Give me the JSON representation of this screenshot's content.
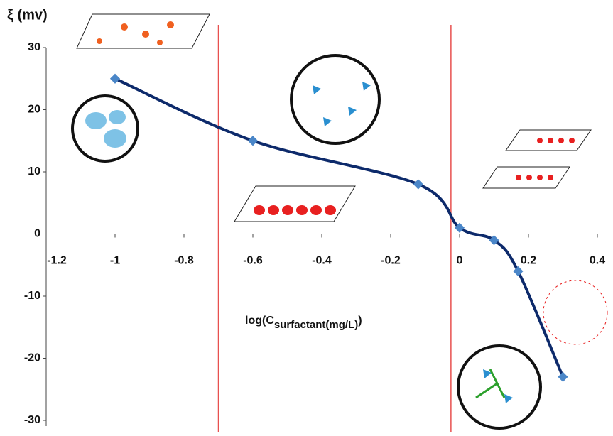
{
  "chart_data": {
    "type": "line",
    "y_label": "ξ (mv)",
    "x_label": {
      "main": "log(C",
      "sub": "surfactant(mg/L)",
      "close": ")"
    },
    "xlim": [
      -1.2,
      0.4
    ],
    "xticks": [
      -1.2,
      -1,
      -0.8,
      -0.6,
      -0.4,
      -0.2,
      0,
      0.2,
      0.4
    ],
    "ylim": [
      -30,
      30
    ],
    "yticks": [
      30,
      20,
      10,
      0,
      -10,
      -20,
      -30
    ],
    "series": [
      {
        "color": "#0d2a6b",
        "marker_color": "#4a86c8",
        "x": [
          -1,
          -0.6,
          -0.12,
          0,
          0.1,
          0.17,
          0.3
        ],
        "values": [
          25,
          15,
          8,
          1,
          -1,
          -6,
          -23
        ]
      }
    ],
    "reference_lines": {
      "color": "#e8504f",
      "x": [
        -0.7,
        -0.025
      ]
    }
  }
}
